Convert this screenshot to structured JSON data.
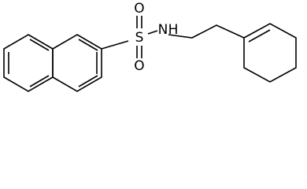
{
  "atoms": [
    "S",
    "O",
    "O",
    "N",
    "H"
  ]
}
